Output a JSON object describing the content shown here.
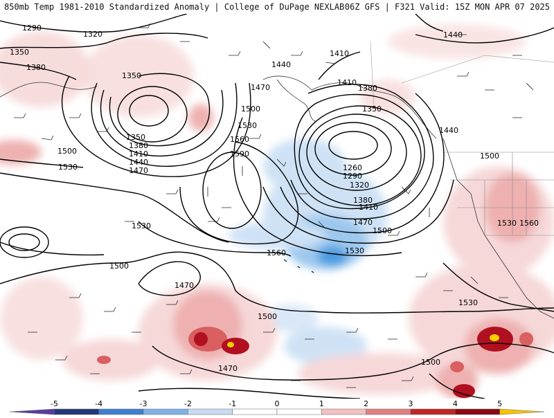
{
  "header": {
    "left_title": "850mb Temp 1981-2010 Standardized Anomaly | College of DuPage NEXLAB",
    "right_title": "06Z GFS | F321 Valid: 15Z MON APR 07 2025"
  },
  "map": {
    "contour_labels": [
      "1290",
      "1320",
      "1350",
      "1380",
      "1350",
      "1500",
      "1530",
      "1440",
      "1410",
      "1440",
      "1470",
      "1410",
      "1380",
      "1350",
      "1500",
      "1530",
      "1560",
      "1590",
      "1350",
      "1380",
      "1410",
      "1440",
      "1470",
      "1260",
      "1290",
      "1320",
      "1380",
      "1410",
      "1470",
      "1500",
      "1530",
      "1560",
      "1530",
      "1500",
      "1470",
      "1500",
      "1470",
      "1530",
      "1500",
      "1500",
      "1530",
      "1560",
      "1440"
    ],
    "colors": {
      "warm_light": "#f6d8d8",
      "warm_mid": "#eeb0b0",
      "warm_strong": "#d95f60",
      "warm_dark": "#b01020",
      "warm_extreme": "#f5d000",
      "cool_light": "#cfe2f5",
      "cool_mid": "#9cc8ee",
      "cool_strong": "#4a9be0"
    }
  },
  "colorbar": {
    "ticks": [
      "-5",
      "-4",
      "-3",
      "-2",
      "-1",
      "0",
      "1",
      "2",
      "3",
      "4",
      "5"
    ],
    "colors": [
      "#5b3aa0",
      "#23367a",
      "#3f7fd0",
      "#7fb1e6",
      "#c7dcf2",
      "#ffffff",
      "#ffffff",
      "#f3c1c1",
      "#e08080",
      "#c02626",
      "#8a0a14",
      "#f5c400"
    ]
  }
}
